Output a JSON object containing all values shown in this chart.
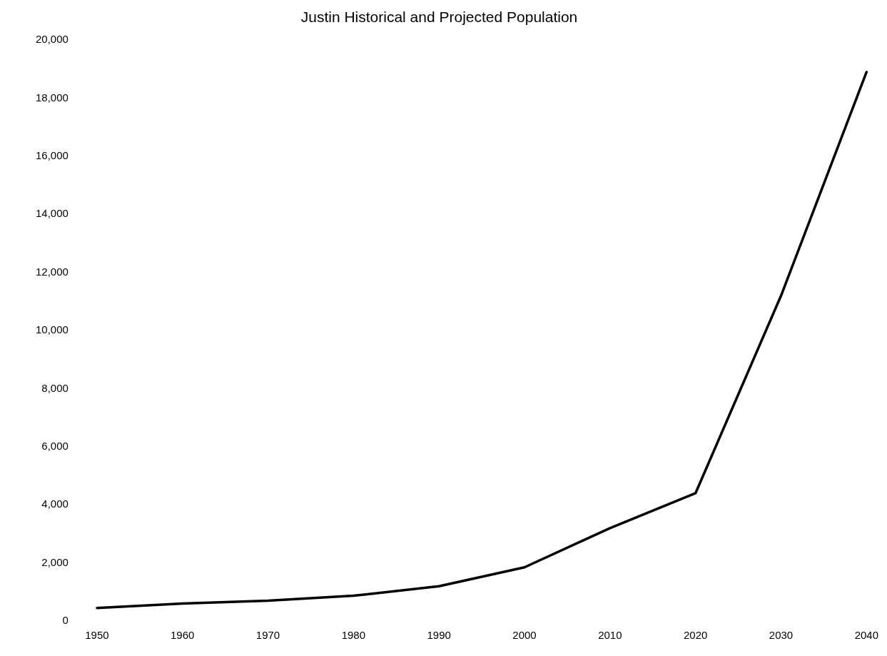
{
  "chart_data": {
    "type": "line",
    "title": "Justin Historical and Projected Population",
    "categories": [
      "1950",
      "1960",
      "1970",
      "1980",
      "1990",
      "2000",
      "2010",
      "2020",
      "2030",
      "2040"
    ],
    "series": [
      {
        "color": "#000000",
        "values": [
          450,
          600,
          700,
          870,
          1200,
          1850,
          3200,
          4400,
          11200,
          18900
        ]
      }
    ],
    "ylim": [
      0,
      20000
    ],
    "yticks": [
      {
        "value": 0,
        "label": "0"
      },
      {
        "value": 2000,
        "label": "2,000"
      },
      {
        "value": 4000,
        "label": "4,000"
      },
      {
        "value": 6000,
        "label": "6,000"
      },
      {
        "value": 8000,
        "label": "8,000"
      },
      {
        "value": 10000,
        "label": "10,000"
      },
      {
        "value": 12000,
        "label": "12,000"
      },
      {
        "value": 14000,
        "label": "14,000"
      },
      {
        "value": 16000,
        "label": "16,000"
      },
      {
        "value": 18000,
        "label": "18,000"
      },
      {
        "value": 20000,
        "label": "20,000"
      }
    ],
    "grid": false,
    "legend": false,
    "marker": "none",
    "line_style": "solid"
  }
}
